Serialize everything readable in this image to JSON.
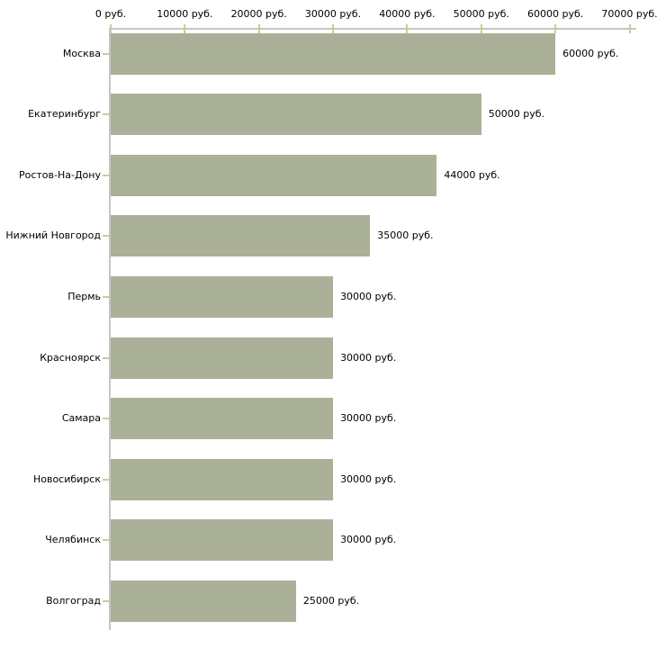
{
  "chart_data": {
    "type": "bar",
    "orientation": "horizontal",
    "title": "",
    "categories": [
      "Москва",
      "Екатеринбург",
      "Ростов-На-Дону",
      "Нижний Новгород",
      "Пермь",
      "Красноярск",
      "Самара",
      "Новосибирск",
      "Челябинск",
      "Волгоград"
    ],
    "values": [
      60000,
      50000,
      44000,
      35000,
      30000,
      30000,
      30000,
      30000,
      30000,
      25000
    ],
    "value_labels": [
      "60000 руб.",
      "50000 руб.",
      "44000 руб.",
      "35000 руб.",
      "30000 руб.",
      "30000 руб.",
      "30000 руб.",
      "30000 руб.",
      "30000 руб.",
      "25000 руб."
    ],
    "unit": "руб.",
    "x_axis": {
      "position": "top",
      "min": 0,
      "max": 70000,
      "ticks": [
        0,
        10000,
        20000,
        30000,
        40000,
        50000,
        60000,
        70000
      ],
      "tick_labels": [
        "0 руб.",
        "10000 руб.",
        "20000 руб.",
        "30000 руб.",
        "40000 руб.",
        "50000 руб.",
        "60000 руб.",
        "70000 руб."
      ]
    },
    "legend": false,
    "grid": false,
    "colors": {
      "bar": "#abb098",
      "axis_line": "#c6c6c6",
      "tick": "#cccc99",
      "text": "#000000",
      "background": "#ffffff"
    }
  }
}
